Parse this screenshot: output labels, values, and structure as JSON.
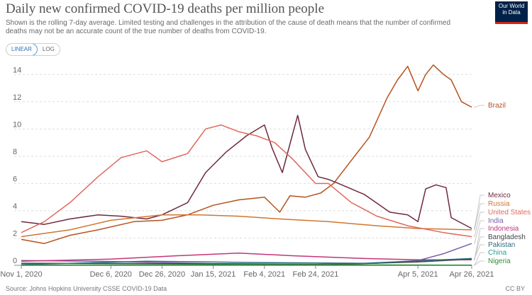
{
  "header": {
    "title": "Daily new confirmed COVID-19 deaths per million people",
    "subtitle": "Shown is the rolling 7-day average. Limited testing and challenges in the attribution of the cause of death means that the number of confirmed deaths may not be an accurate count of the true number of deaths from COVID-19.",
    "logo_line1": "Our World",
    "logo_line2": "in Data"
  },
  "controls": {
    "linear_label": "LINEAR",
    "log_label": "LOG",
    "selected": "LINEAR"
  },
  "footer": {
    "source": "Source: Johns Hopkins University CSSE COVID-19 Data",
    "license": "CC BY"
  },
  "chart_data": {
    "type": "line",
    "title": "Daily new confirmed COVID-19 deaths per million people",
    "x_type": "date",
    "x_ticks": [
      "2020-11-01",
      "2020-12-06",
      "2020-12-26",
      "2021-01-15",
      "2021-02-04",
      "2021-02-24",
      "2021-04-05",
      "2021-04-26"
    ],
    "x_tick_labels": [
      "Nov 1, 2020",
      "Dec 6, 2020",
      "Dec 26, 2020",
      "Jan 15, 2021",
      "Feb 4, 2021",
      "Feb 24, 2021",
      "Apr 5, 2021",
      "Apr 26, 2021"
    ],
    "y_ticks": [
      0,
      2,
      4,
      6,
      8,
      10,
      12,
      14
    ],
    "xlim": [
      "2020-11-01",
      "2021-04-26"
    ],
    "ylim": [
      0,
      15
    ],
    "grid": "horizontal-dashed",
    "legend": "end-of-line labels, right",
    "series": [
      {
        "name": "Brazil",
        "color": "#b5521e",
        "points": [
          [
            "2020-11-01",
            1.9
          ],
          [
            "2020-11-10",
            1.6
          ],
          [
            "2020-11-20",
            2.2
          ],
          [
            "2020-12-01",
            2.6
          ],
          [
            "2020-12-15",
            3.2
          ],
          [
            "2020-12-26",
            3.3
          ],
          [
            "2021-01-05",
            3.7
          ],
          [
            "2021-01-15",
            4.4
          ],
          [
            "2021-01-25",
            4.8
          ],
          [
            "2021-02-04",
            5.0
          ],
          [
            "2021-02-10",
            3.9
          ],
          [
            "2021-02-14",
            5.1
          ],
          [
            "2021-02-20",
            5.0
          ],
          [
            "2021-02-26",
            5.3
          ],
          [
            "2021-03-03",
            6.0
          ],
          [
            "2021-03-10",
            7.7
          ],
          [
            "2021-03-17",
            9.4
          ],
          [
            "2021-03-24",
            12.3
          ],
          [
            "2021-03-28",
            13.6
          ],
          [
            "2021-04-01",
            14.6
          ],
          [
            "2021-04-05",
            12.8
          ],
          [
            "2021-04-08",
            14.0
          ],
          [
            "2021-04-11",
            14.7
          ],
          [
            "2021-04-15",
            14.0
          ],
          [
            "2021-04-18",
            13.6
          ],
          [
            "2021-04-22",
            12.0
          ],
          [
            "2021-04-26",
            11.6
          ]
        ]
      },
      {
        "name": "Mexico",
        "color": "#6d2a3c",
        "points": [
          [
            "2020-11-01",
            3.2
          ],
          [
            "2020-11-10",
            3.0
          ],
          [
            "2020-11-20",
            3.4
          ],
          [
            "2020-12-01",
            3.7
          ],
          [
            "2020-12-10",
            3.6
          ],
          [
            "2020-12-20",
            3.4
          ],
          [
            "2020-12-26",
            3.7
          ],
          [
            "2021-01-05",
            4.6
          ],
          [
            "2021-01-12",
            6.8
          ],
          [
            "2021-01-20",
            8.3
          ],
          [
            "2021-01-28",
            9.5
          ],
          [
            "2021-02-04",
            10.3
          ],
          [
            "2021-02-07",
            8.6
          ],
          [
            "2021-02-11",
            6.8
          ],
          [
            "2021-02-15",
            9.6
          ],
          [
            "2021-02-17",
            11.0
          ],
          [
            "2021-02-20",
            8.5
          ],
          [
            "2021-02-25",
            6.5
          ],
          [
            "2021-03-01",
            6.3
          ],
          [
            "2021-03-05",
            6.0
          ],
          [
            "2021-03-15",
            5.2
          ],
          [
            "2021-03-25",
            3.9
          ],
          [
            "2021-04-01",
            3.7
          ],
          [
            "2021-04-05",
            3.2
          ],
          [
            "2021-04-08",
            5.6
          ],
          [
            "2021-04-12",
            5.9
          ],
          [
            "2021-04-16",
            5.7
          ],
          [
            "2021-04-18",
            3.5
          ],
          [
            "2021-04-26",
            2.7
          ]
        ]
      },
      {
        "name": "Russia",
        "color": "#d0762f",
        "points": [
          [
            "2020-11-01",
            2.1
          ],
          [
            "2020-11-20",
            2.6
          ],
          [
            "2020-12-06",
            3.3
          ],
          [
            "2020-12-26",
            3.7
          ],
          [
            "2021-01-10",
            3.7
          ],
          [
            "2021-01-25",
            3.6
          ],
          [
            "2021-02-10",
            3.4
          ],
          [
            "2021-03-01",
            3.2
          ],
          [
            "2021-03-20",
            2.9
          ],
          [
            "2021-04-05",
            2.7
          ],
          [
            "2021-04-26",
            2.6
          ]
        ]
      },
      {
        "name": "United States",
        "color": "#e0685d",
        "points": [
          [
            "2020-11-01",
            2.4
          ],
          [
            "2020-11-10",
            3.2
          ],
          [
            "2020-11-20",
            4.6
          ],
          [
            "2020-12-01",
            6.5
          ],
          [
            "2020-12-10",
            7.9
          ],
          [
            "2020-12-20",
            8.4
          ],
          [
            "2020-12-26",
            7.6
          ],
          [
            "2021-01-05",
            8.2
          ],
          [
            "2021-01-12",
            10.0
          ],
          [
            "2021-01-18",
            10.3
          ],
          [
            "2021-01-25",
            9.8
          ],
          [
            "2021-02-01",
            9.5
          ],
          [
            "2021-02-08",
            9.0
          ],
          [
            "2021-02-15",
            7.8
          ],
          [
            "2021-02-24",
            6.0
          ],
          [
            "2021-03-01",
            6.0
          ],
          [
            "2021-03-10",
            4.6
          ],
          [
            "2021-03-20",
            3.6
          ],
          [
            "2021-04-01",
            2.9
          ],
          [
            "2021-04-15",
            2.4
          ],
          [
            "2021-04-26",
            2.1
          ]
        ]
      },
      {
        "name": "India",
        "color": "#7a5fa8",
        "points": [
          [
            "2020-11-01",
            0.35
          ],
          [
            "2020-12-06",
            0.28
          ],
          [
            "2021-01-15",
            0.12
          ],
          [
            "2021-02-24",
            0.08
          ],
          [
            "2021-03-20",
            0.15
          ],
          [
            "2021-04-05",
            0.35
          ],
          [
            "2021-04-15",
            0.85
          ],
          [
            "2021-04-26",
            1.6
          ]
        ]
      },
      {
        "name": "Indonesia",
        "color": "#c4347a",
        "points": [
          [
            "2020-11-01",
            0.3
          ],
          [
            "2020-12-06",
            0.45
          ],
          [
            "2021-01-01",
            0.7
          ],
          [
            "2021-01-25",
            0.9
          ],
          [
            "2021-02-15",
            0.7
          ],
          [
            "2021-03-15",
            0.5
          ],
          [
            "2021-04-05",
            0.4
          ],
          [
            "2021-04-26",
            0.4
          ]
        ]
      },
      {
        "name": "Bangladesh",
        "color": "#444444",
        "points": [
          [
            "2020-11-01",
            0.15
          ],
          [
            "2021-01-15",
            0.12
          ],
          [
            "2021-03-01",
            0.05
          ],
          [
            "2021-04-05",
            0.25
          ],
          [
            "2021-04-26",
            0.45
          ]
        ]
      },
      {
        "name": "Pakistan",
        "color": "#2e6e86",
        "points": [
          [
            "2020-11-01",
            0.05
          ],
          [
            "2020-12-20",
            0.3
          ],
          [
            "2021-02-01",
            0.2
          ],
          [
            "2021-03-15",
            0.15
          ],
          [
            "2021-04-26",
            0.5
          ]
        ]
      },
      {
        "name": "China",
        "color": "#2a9d8f",
        "points": [
          [
            "2020-11-01",
            0.0
          ],
          [
            "2021-04-26",
            0.0
          ]
        ]
      },
      {
        "name": "Nigeria",
        "color": "#2f8f3a",
        "points": [
          [
            "2020-11-01",
            0.01
          ],
          [
            "2021-01-25",
            0.05
          ],
          [
            "2021-04-26",
            0.01
          ]
        ]
      }
    ]
  }
}
